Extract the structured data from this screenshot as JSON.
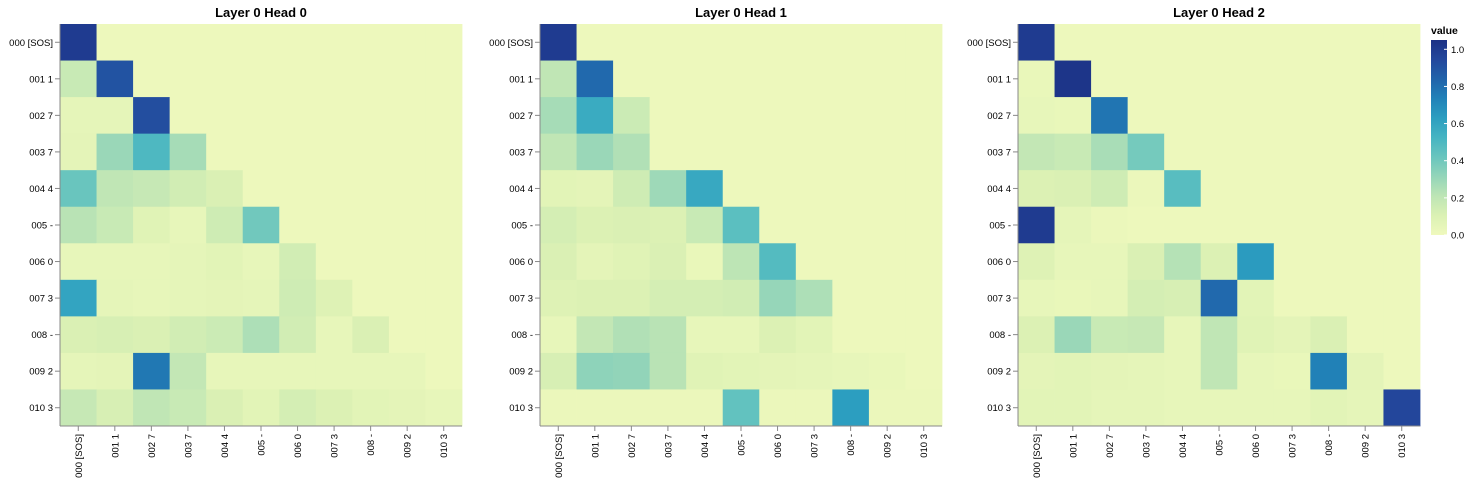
{
  "chart_data": [
    {
      "type": "heatmap",
      "title": "Layer 0 Head 0",
      "x_categories": [
        "000 [SOS]",
        "001 1",
        "002 7",
        "003 7",
        "004 4",
        "005 -",
        "006 0",
        "007 3",
        "008 -",
        "009 2",
        "010 3"
      ],
      "y_categories": [
        "000 [SOS]",
        "001 1",
        "002 7",
        "003 7",
        "004 4",
        "005 -",
        "006 0",
        "007 3",
        "008 -",
        "009 2",
        "010 3"
      ],
      "values": [
        [
          1.0,
          0.01,
          0.01,
          0.01,
          0.01,
          0.01,
          0.01,
          0.01,
          0.01,
          0.01,
          0.01
        ],
        [
          0.17,
          0.9,
          0.01,
          0.01,
          0.01,
          0.01,
          0.01,
          0.01,
          0.01,
          0.01,
          0.01
        ],
        [
          0.05,
          0.05,
          0.92,
          0.01,
          0.01,
          0.01,
          0.01,
          0.01,
          0.01,
          0.01,
          0.01
        ],
        [
          0.06,
          0.3,
          0.5,
          0.27,
          0.01,
          0.01,
          0.01,
          0.01,
          0.01,
          0.01,
          0.01
        ],
        [
          0.42,
          0.2,
          0.18,
          0.14,
          0.11,
          0.01,
          0.01,
          0.01,
          0.01,
          0.01,
          0.01
        ],
        [
          0.22,
          0.17,
          0.08,
          0.04,
          0.15,
          0.4,
          0.01,
          0.01,
          0.01,
          0.01,
          0.01
        ],
        [
          0.04,
          0.04,
          0.04,
          0.05,
          0.07,
          0.04,
          0.14,
          0.01,
          0.01,
          0.01,
          0.01
        ],
        [
          0.6,
          0.05,
          0.04,
          0.05,
          0.06,
          0.05,
          0.15,
          0.09,
          0.01,
          0.01,
          0.01
        ],
        [
          0.11,
          0.12,
          0.11,
          0.14,
          0.16,
          0.25,
          0.14,
          0.04,
          0.11,
          0.01,
          0.01
        ],
        [
          0.05,
          0.06,
          0.77,
          0.19,
          0.04,
          0.04,
          0.04,
          0.04,
          0.04,
          0.04,
          0.01
        ],
        [
          0.18,
          0.12,
          0.2,
          0.17,
          0.11,
          0.07,
          0.13,
          0.1,
          0.07,
          0.06,
          0.04
        ]
      ],
      "color_scheme": "yellowgreenblue",
      "domain": [
        0,
        1
      ]
    },
    {
      "type": "heatmap",
      "title": "Layer 0 Head 1",
      "x_categories": [
        "000 [SOS]",
        "001 1",
        "002 7",
        "003 7",
        "004 4",
        "005 -",
        "006 0",
        "007 3",
        "008 -",
        "009 2",
        "010 3"
      ],
      "y_categories": [
        "000 [SOS]",
        "001 1",
        "002 7",
        "003 7",
        "004 4",
        "005 -",
        "006 0",
        "007 3",
        "008 -",
        "009 2",
        "010 3"
      ],
      "values": [
        [
          1.0,
          0.01,
          0.01,
          0.01,
          0.01,
          0.01,
          0.01,
          0.01,
          0.01,
          0.01,
          0.01
        ],
        [
          0.2,
          0.82,
          0.01,
          0.01,
          0.01,
          0.01,
          0.01,
          0.01,
          0.01,
          0.01,
          0.01
        ],
        [
          0.27,
          0.57,
          0.16,
          0.01,
          0.01,
          0.01,
          0.01,
          0.01,
          0.01,
          0.01,
          0.01
        ],
        [
          0.2,
          0.3,
          0.24,
          0.01,
          0.01,
          0.01,
          0.01,
          0.01,
          0.01,
          0.01,
          0.01
        ],
        [
          0.07,
          0.06,
          0.15,
          0.29,
          0.58,
          0.01,
          0.01,
          0.01,
          0.01,
          0.01,
          0.01
        ],
        [
          0.13,
          0.1,
          0.11,
          0.1,
          0.17,
          0.46,
          0.01,
          0.01,
          0.01,
          0.01,
          0.01
        ],
        [
          0.11,
          0.06,
          0.08,
          0.11,
          0.03,
          0.21,
          0.48,
          0.01,
          0.01,
          0.01,
          0.01
        ],
        [
          0.09,
          0.1,
          0.1,
          0.13,
          0.13,
          0.14,
          0.31,
          0.25,
          0.01,
          0.01,
          0.01
        ],
        [
          0.04,
          0.19,
          0.24,
          0.22,
          0.04,
          0.04,
          0.1,
          0.07,
          0.01,
          0.01,
          0.01
        ],
        [
          0.12,
          0.33,
          0.32,
          0.22,
          0.08,
          0.07,
          0.06,
          0.05,
          0.04,
          0.03,
          0.01
        ],
        [
          0.02,
          0.02,
          0.02,
          0.02,
          0.02,
          0.44,
          0.02,
          0.02,
          0.63,
          0.02,
          0.02
        ]
      ],
      "color_scheme": "yellowgreenblue",
      "domain": [
        0,
        1
      ]
    },
    {
      "type": "heatmap",
      "title": "Layer 0 Head 2",
      "x_categories": [
        "000 [SOS]",
        "001 1",
        "002 7",
        "003 7",
        "004 4",
        "005 -",
        "006 0",
        "007 3",
        "008 -",
        "009 2",
        "010 3"
      ],
      "y_categories": [
        "000 [SOS]",
        "001 1",
        "002 7",
        "003 7",
        "004 4",
        "005 -",
        "006 0",
        "007 3",
        "008 -",
        "009 2",
        "010 3"
      ],
      "values": [
        [
          1.0,
          0.01,
          0.01,
          0.01,
          0.01,
          0.01,
          0.01,
          0.01,
          0.01,
          0.01,
          0.01
        ],
        [
          0.03,
          1.03,
          0.01,
          0.01,
          0.01,
          0.01,
          0.01,
          0.01,
          0.01,
          0.01,
          0.01
        ],
        [
          0.04,
          0.03,
          0.78,
          0.01,
          0.01,
          0.01,
          0.01,
          0.01,
          0.01,
          0.01,
          0.01
        ],
        [
          0.19,
          0.17,
          0.26,
          0.39,
          0.01,
          0.01,
          0.01,
          0.01,
          0.01,
          0.01,
          0.01
        ],
        [
          0.1,
          0.11,
          0.15,
          0.02,
          0.47,
          0.01,
          0.01,
          0.01,
          0.01,
          0.01,
          0.01
        ],
        [
          1.0,
          0.05,
          0.02,
          0.01,
          0.01,
          0.01,
          0.01,
          0.01,
          0.01,
          0.01,
          0.01
        ],
        [
          0.09,
          0.04,
          0.04,
          0.11,
          0.23,
          0.1,
          0.64,
          0.01,
          0.01,
          0.01,
          0.01
        ],
        [
          0.04,
          0.03,
          0.04,
          0.13,
          0.12,
          0.82,
          0.07,
          0.01,
          0.01,
          0.01,
          0.01
        ],
        [
          0.1,
          0.3,
          0.17,
          0.18,
          0.04,
          0.2,
          0.08,
          0.06,
          0.11,
          0.01,
          0.01
        ],
        [
          0.06,
          0.07,
          0.06,
          0.05,
          0.04,
          0.2,
          0.04,
          0.03,
          0.74,
          0.06,
          0.01
        ],
        [
          0.07,
          0.07,
          0.05,
          0.05,
          0.04,
          0.04,
          0.04,
          0.04,
          0.07,
          0.05,
          0.95
        ]
      ],
      "color_scheme": "yellowgreenblue",
      "domain": [
        0,
        1
      ]
    }
  ],
  "legend": {
    "title": "value",
    "ticks": [
      "1.0",
      "0.8",
      "0.6",
      "0.4",
      "0.2",
      "0.0"
    ],
    "tick_values": [
      1.0,
      0.8,
      0.6,
      0.4,
      0.2,
      0.0
    ],
    "domain": [
      0,
      1.05
    ],
    "placement": "right"
  },
  "colors": {
    "stops": [
      "#eff9bd",
      "#dbf1b4",
      "#bde5b5",
      "#94d5b9",
      "#69c5be",
      "#45b4c2",
      "#2c9ec0",
      "#2182b8",
      "#2163aa",
      "#23479c",
      "#1c3185"
    ],
    "axis": "#888888"
  }
}
